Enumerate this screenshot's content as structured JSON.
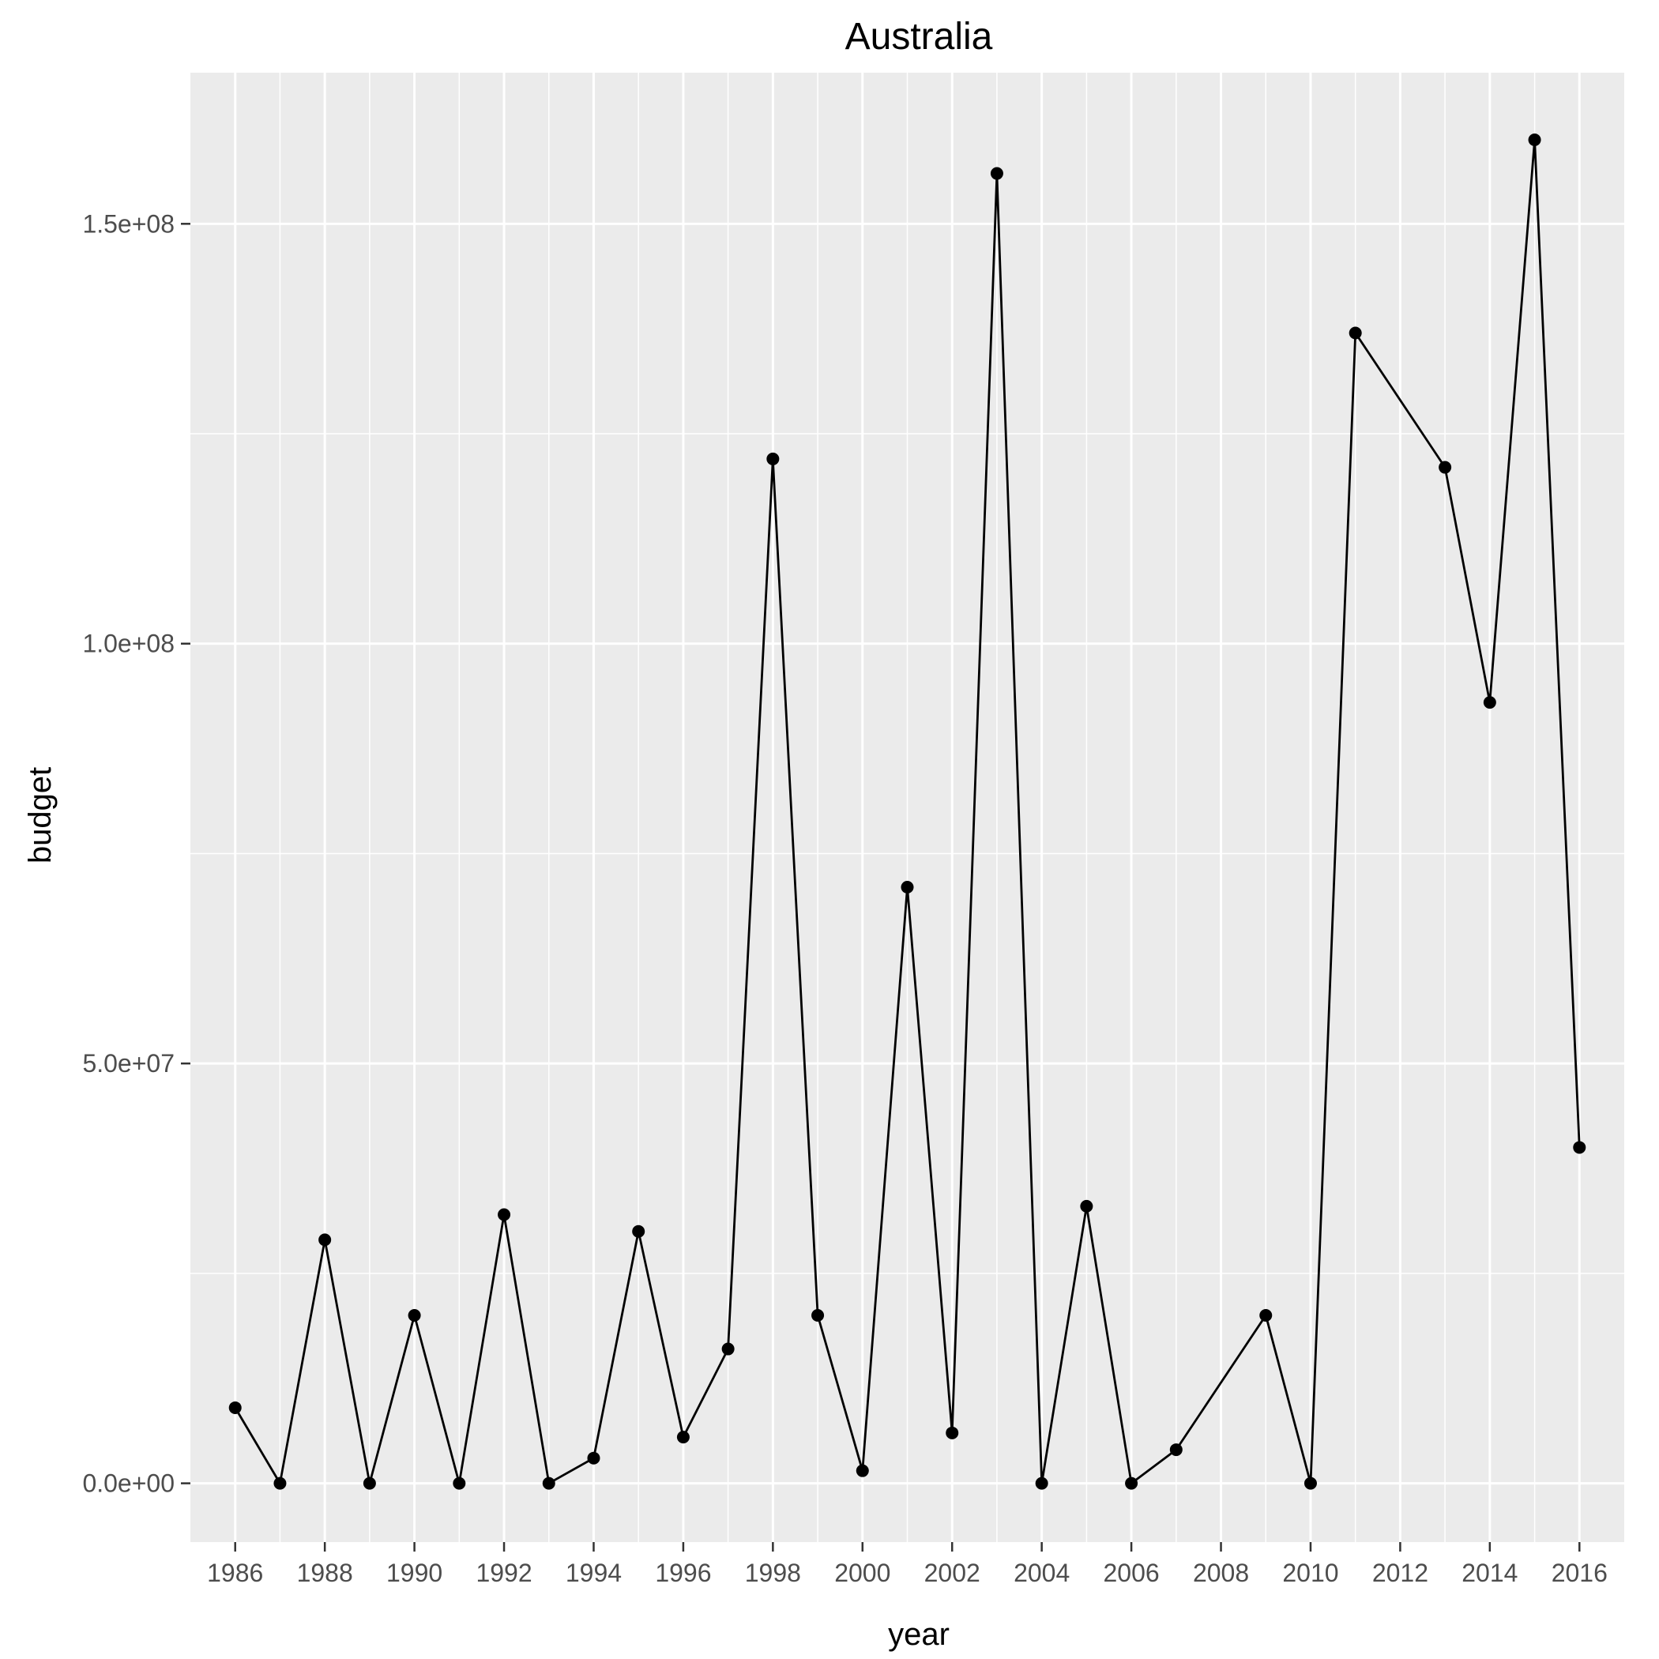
{
  "chart_data": {
    "type": "line",
    "title": "Australia",
    "xlabel": "year",
    "ylabel": "budget",
    "xlim": [
      1985,
      2017
    ],
    "ylim": [
      -7000000,
      168000000
    ],
    "x_ticks": [
      1986,
      1988,
      1990,
      1992,
      1994,
      1996,
      1998,
      2000,
      2002,
      2004,
      2006,
      2008,
      2010,
      2012,
      2014,
      2016
    ],
    "y_ticks": [
      {
        "value": 0,
        "label": "0.0e+00"
      },
      {
        "value": 50000000,
        "label": "5.0e+07"
      },
      {
        "value": 100000000,
        "label": "1.0e+08"
      },
      {
        "value": 150000000,
        "label": "1.5e+08"
      }
    ],
    "grid": true,
    "colors": {
      "panel": "#ebebeb",
      "line": "#000000",
      "point": "#000000"
    },
    "series": [
      {
        "x": [
          1986,
          1987,
          1988,
          1989,
          1990,
          1991,
          1992,
          1993,
          1994,
          1995,
          1996,
          1997,
          1998,
          1999,
          2000,
          2001,
          2002,
          2003,
          2004,
          2005,
          2006,
          2007,
          2009,
          2010,
          2011,
          2013,
          2014,
          2015,
          2016
        ],
        "y": [
          9000000,
          0,
          29000000,
          0,
          20000000,
          0,
          32000000,
          0,
          3000000,
          30000000,
          5500000,
          16000000,
          122000000,
          20000000,
          1500000,
          71000000,
          6000000,
          156000000,
          0,
          33000000,
          0,
          4000000,
          20000000,
          0,
          137000000,
          121000000,
          93000000,
          160000000,
          40000000
        ]
      }
    ]
  }
}
